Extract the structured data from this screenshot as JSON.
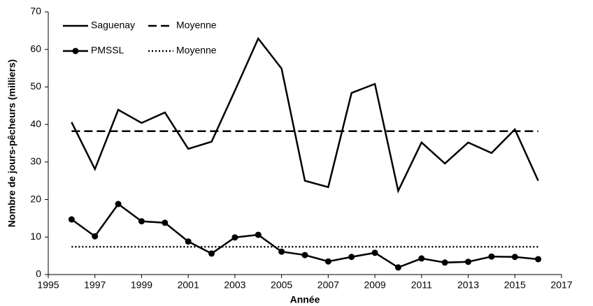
{
  "chart_data": {
    "type": "line",
    "x_label": "Année",
    "y_label": "Nombre de jours-pêcheurs (milliers)",
    "x": [
      1996,
      1997,
      1998,
      1999,
      2000,
      2001,
      2002,
      2003,
      2004,
      2005,
      2006,
      2007,
      2008,
      2009,
      2010,
      2011,
      2012,
      2013,
      2014,
      2015,
      2016
    ],
    "series": [
      {
        "name": "Saguenay",
        "color": "#000000",
        "style": "solid",
        "marker": "none",
        "values": [
          40.6,
          28.1,
          43.9,
          40.4,
          43.2,
          33.5,
          35.4,
          49,
          62.9,
          54.9,
          25,
          23.3,
          48.4,
          50.8,
          22.3,
          35.2,
          29.6,
          35.2,
          32.4,
          38.7,
          25
        ]
      },
      {
        "name": "Moyenne",
        "color": "#000000",
        "style": "dashed",
        "marker": "none",
        "x": [
          1996,
          2016
        ],
        "values": [
          38.2,
          38.2
        ]
      },
      {
        "name": "PMSSL",
        "color": "#000000",
        "style": "solid",
        "marker": "circle",
        "values": [
          14.7,
          10.2,
          18.8,
          14.2,
          13.8,
          8.8,
          5.6,
          9.9,
          10.6,
          6.1,
          5.2,
          3.5,
          4.7,
          5.8,
          1.9,
          4.3,
          3.2,
          3.4,
          4.8,
          4.7,
          4.1
        ]
      },
      {
        "name": "Moyenne",
        "color": "#000000",
        "style": "dotted",
        "marker": "none",
        "x": [
          1996,
          2016
        ],
        "values": [
          7.4,
          7.4
        ]
      }
    ],
    "xlim": [
      1995,
      2017
    ],
    "xticks": [
      1995,
      1997,
      1999,
      2001,
      2003,
      2005,
      2007,
      2009,
      2011,
      2013,
      2015,
      2017
    ],
    "ylim": [
      0,
      70
    ],
    "yticks": [
      0,
      10,
      20,
      30,
      40,
      50,
      60,
      70
    ],
    "grid": false,
    "legend": "upper left"
  }
}
